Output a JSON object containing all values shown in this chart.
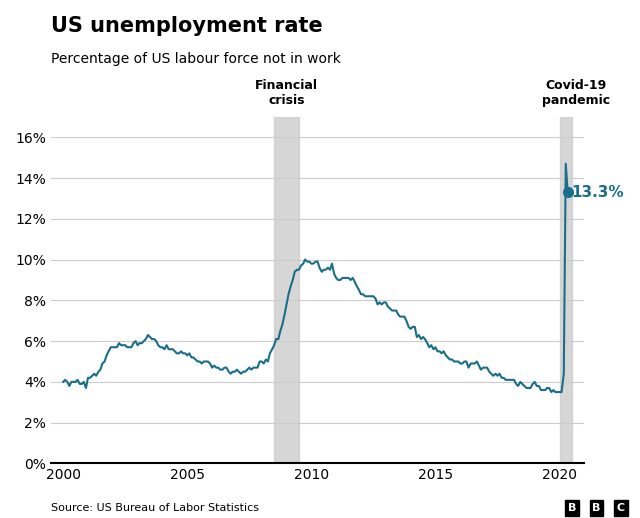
{
  "title": "US unemployment rate",
  "subtitle": "Percentage of US labour force not in work",
  "source": "Source: US Bureau of Labor Statistics",
  "line_color": "#1a6e8a",
  "background_color": "#ffffff",
  "shading_color": "#cccccc",
  "financial_crisis": [
    2008.5,
    2009.5
  ],
  "covid_pandemic": [
    2020.0,
    2020.5
  ],
  "financial_crisis_label": "Financial\ncrisis",
  "covid_label": "Covid-19\npandemic",
  "annotation_value": 13.3,
  "annotation_year": 2020.33,
  "annotation_text": "13.3%",
  "ylim": [
    0,
    17
  ],
  "xlim": [
    1999.5,
    2021.0
  ],
  "yticks": [
    0,
    2,
    4,
    6,
    8,
    10,
    12,
    14,
    16
  ],
  "ytick_labels": [
    "0%",
    "2%",
    "4%",
    "6%",
    "8%",
    "10%",
    "12%",
    "14%",
    "16%"
  ],
  "xticks": [
    2000,
    2005,
    2010,
    2015,
    2020
  ],
  "unemployment_data": [
    [
      2000.0,
      4.0
    ],
    [
      2000.08,
      4.1
    ],
    [
      2000.17,
      4.0
    ],
    [
      2000.25,
      3.8
    ],
    [
      2000.33,
      4.0
    ],
    [
      2000.42,
      4.0
    ],
    [
      2000.5,
      4.0
    ],
    [
      2000.58,
      4.1
    ],
    [
      2000.67,
      3.9
    ],
    [
      2000.75,
      3.9
    ],
    [
      2000.83,
      4.0
    ],
    [
      2000.92,
      3.7
    ],
    [
      2001.0,
      4.2
    ],
    [
      2001.08,
      4.2
    ],
    [
      2001.17,
      4.3
    ],
    [
      2001.25,
      4.4
    ],
    [
      2001.33,
      4.3
    ],
    [
      2001.42,
      4.5
    ],
    [
      2001.5,
      4.6
    ],
    [
      2001.58,
      4.9
    ],
    [
      2001.67,
      5.0
    ],
    [
      2001.75,
      5.3
    ],
    [
      2001.83,
      5.5
    ],
    [
      2001.92,
      5.7
    ],
    [
      2002.0,
      5.7
    ],
    [
      2002.08,
      5.7
    ],
    [
      2002.17,
      5.7
    ],
    [
      2002.25,
      5.9
    ],
    [
      2002.33,
      5.8
    ],
    [
      2002.42,
      5.8
    ],
    [
      2002.5,
      5.8
    ],
    [
      2002.58,
      5.7
    ],
    [
      2002.67,
      5.7
    ],
    [
      2002.75,
      5.7
    ],
    [
      2002.83,
      5.9
    ],
    [
      2002.92,
      6.0
    ],
    [
      2003.0,
      5.8
    ],
    [
      2003.08,
      5.9
    ],
    [
      2003.17,
      5.9
    ],
    [
      2003.25,
      6.0
    ],
    [
      2003.33,
      6.1
    ],
    [
      2003.42,
      6.3
    ],
    [
      2003.5,
      6.2
    ],
    [
      2003.58,
      6.1
    ],
    [
      2003.67,
      6.1
    ],
    [
      2003.75,
      6.0
    ],
    [
      2003.83,
      5.8
    ],
    [
      2003.92,
      5.7
    ],
    [
      2004.0,
      5.7
    ],
    [
      2004.08,
      5.6
    ],
    [
      2004.17,
      5.8
    ],
    [
      2004.25,
      5.6
    ],
    [
      2004.33,
      5.6
    ],
    [
      2004.42,
      5.6
    ],
    [
      2004.5,
      5.5
    ],
    [
      2004.58,
      5.4
    ],
    [
      2004.67,
      5.4
    ],
    [
      2004.75,
      5.5
    ],
    [
      2004.83,
      5.4
    ],
    [
      2004.92,
      5.4
    ],
    [
      2005.0,
      5.3
    ],
    [
      2005.08,
      5.4
    ],
    [
      2005.17,
      5.2
    ],
    [
      2005.25,
      5.2
    ],
    [
      2005.33,
      5.1
    ],
    [
      2005.42,
      5.0
    ],
    [
      2005.5,
      5.0
    ],
    [
      2005.58,
      4.9
    ],
    [
      2005.67,
      5.0
    ],
    [
      2005.75,
      5.0
    ],
    [
      2005.83,
      5.0
    ],
    [
      2005.92,
      4.9
    ],
    [
      2006.0,
      4.7
    ],
    [
      2006.08,
      4.8
    ],
    [
      2006.17,
      4.7
    ],
    [
      2006.25,
      4.7
    ],
    [
      2006.33,
      4.6
    ],
    [
      2006.42,
      4.6
    ],
    [
      2006.5,
      4.7
    ],
    [
      2006.58,
      4.7
    ],
    [
      2006.67,
      4.5
    ],
    [
      2006.75,
      4.4
    ],
    [
      2006.83,
      4.5
    ],
    [
      2006.92,
      4.5
    ],
    [
      2007.0,
      4.6
    ],
    [
      2007.08,
      4.5
    ],
    [
      2007.17,
      4.4
    ],
    [
      2007.25,
      4.5
    ],
    [
      2007.33,
      4.5
    ],
    [
      2007.42,
      4.6
    ],
    [
      2007.5,
      4.7
    ],
    [
      2007.58,
      4.6
    ],
    [
      2007.67,
      4.7
    ],
    [
      2007.75,
      4.7
    ],
    [
      2007.83,
      4.7
    ],
    [
      2007.92,
      5.0
    ],
    [
      2008.0,
      5.0
    ],
    [
      2008.08,
      4.9
    ],
    [
      2008.17,
      5.1
    ],
    [
      2008.25,
      5.0
    ],
    [
      2008.33,
      5.4
    ],
    [
      2008.42,
      5.6
    ],
    [
      2008.5,
      5.8
    ],
    [
      2008.58,
      6.1
    ],
    [
      2008.67,
      6.1
    ],
    [
      2008.75,
      6.5
    ],
    [
      2008.83,
      6.8
    ],
    [
      2008.92,
      7.3
    ],
    [
      2009.0,
      7.8
    ],
    [
      2009.08,
      8.3
    ],
    [
      2009.17,
      8.7
    ],
    [
      2009.25,
      9.0
    ],
    [
      2009.33,
      9.4
    ],
    [
      2009.42,
      9.5
    ],
    [
      2009.5,
      9.5
    ],
    [
      2009.58,
      9.7
    ],
    [
      2009.67,
      9.8
    ],
    [
      2009.75,
      10.0
    ],
    [
      2009.83,
      9.9
    ],
    [
      2009.92,
      9.9
    ],
    [
      2010.0,
      9.8
    ],
    [
      2010.08,
      9.8
    ],
    [
      2010.17,
      9.9
    ],
    [
      2010.25,
      9.9
    ],
    [
      2010.33,
      9.6
    ],
    [
      2010.42,
      9.4
    ],
    [
      2010.5,
      9.5
    ],
    [
      2010.58,
      9.5
    ],
    [
      2010.67,
      9.6
    ],
    [
      2010.75,
      9.5
    ],
    [
      2010.83,
      9.8
    ],
    [
      2010.92,
      9.3
    ],
    [
      2011.0,
      9.1
    ],
    [
      2011.08,
      9.0
    ],
    [
      2011.17,
      9.0
    ],
    [
      2011.25,
      9.1
    ],
    [
      2011.33,
      9.1
    ],
    [
      2011.42,
      9.1
    ],
    [
      2011.5,
      9.1
    ],
    [
      2011.58,
      9.0
    ],
    [
      2011.67,
      9.1
    ],
    [
      2011.75,
      8.9
    ],
    [
      2011.83,
      8.7
    ],
    [
      2011.92,
      8.5
    ],
    [
      2012.0,
      8.3
    ],
    [
      2012.08,
      8.3
    ],
    [
      2012.17,
      8.2
    ],
    [
      2012.25,
      8.2
    ],
    [
      2012.33,
      8.2
    ],
    [
      2012.42,
      8.2
    ],
    [
      2012.5,
      8.2
    ],
    [
      2012.58,
      8.1
    ],
    [
      2012.67,
      7.8
    ],
    [
      2012.75,
      7.9
    ],
    [
      2012.83,
      7.8
    ],
    [
      2012.92,
      7.9
    ],
    [
      2013.0,
      7.9
    ],
    [
      2013.08,
      7.7
    ],
    [
      2013.17,
      7.6
    ],
    [
      2013.25,
      7.5
    ],
    [
      2013.33,
      7.5
    ],
    [
      2013.42,
      7.5
    ],
    [
      2013.5,
      7.3
    ],
    [
      2013.58,
      7.2
    ],
    [
      2013.67,
      7.2
    ],
    [
      2013.75,
      7.2
    ],
    [
      2013.83,
      7.0
    ],
    [
      2013.92,
      6.7
    ],
    [
      2014.0,
      6.6
    ],
    [
      2014.08,
      6.7
    ],
    [
      2014.17,
      6.7
    ],
    [
      2014.25,
      6.2
    ],
    [
      2014.33,
      6.3
    ],
    [
      2014.42,
      6.1
    ],
    [
      2014.5,
      6.2
    ],
    [
      2014.58,
      6.1
    ],
    [
      2014.67,
      5.9
    ],
    [
      2014.75,
      5.7
    ],
    [
      2014.83,
      5.8
    ],
    [
      2014.92,
      5.6
    ],
    [
      2015.0,
      5.7
    ],
    [
      2015.08,
      5.5
    ],
    [
      2015.17,
      5.5
    ],
    [
      2015.25,
      5.4
    ],
    [
      2015.33,
      5.5
    ],
    [
      2015.42,
      5.3
    ],
    [
      2015.5,
      5.2
    ],
    [
      2015.58,
      5.1
    ],
    [
      2015.67,
      5.1
    ],
    [
      2015.75,
      5.0
    ],
    [
      2015.83,
      5.0
    ],
    [
      2015.92,
      5.0
    ],
    [
      2016.0,
      4.9
    ],
    [
      2016.08,
      4.9
    ],
    [
      2016.17,
      5.0
    ],
    [
      2016.25,
      5.0
    ],
    [
      2016.33,
      4.7
    ],
    [
      2016.42,
      4.9
    ],
    [
      2016.5,
      4.9
    ],
    [
      2016.58,
      4.9
    ],
    [
      2016.67,
      5.0
    ],
    [
      2016.75,
      4.8
    ],
    [
      2016.83,
      4.6
    ],
    [
      2016.92,
      4.7
    ],
    [
      2017.0,
      4.7
    ],
    [
      2017.08,
      4.7
    ],
    [
      2017.17,
      4.5
    ],
    [
      2017.25,
      4.4
    ],
    [
      2017.33,
      4.3
    ],
    [
      2017.42,
      4.4
    ],
    [
      2017.5,
      4.3
    ],
    [
      2017.58,
      4.4
    ],
    [
      2017.67,
      4.2
    ],
    [
      2017.75,
      4.2
    ],
    [
      2017.83,
      4.1
    ],
    [
      2017.92,
      4.1
    ],
    [
      2018.0,
      4.1
    ],
    [
      2018.08,
      4.1
    ],
    [
      2018.17,
      4.1
    ],
    [
      2018.25,
      3.9
    ],
    [
      2018.33,
      3.8
    ],
    [
      2018.42,
      4.0
    ],
    [
      2018.5,
      3.9
    ],
    [
      2018.58,
      3.8
    ],
    [
      2018.67,
      3.7
    ],
    [
      2018.75,
      3.7
    ],
    [
      2018.83,
      3.7
    ],
    [
      2018.92,
      3.9
    ],
    [
      2019.0,
      4.0
    ],
    [
      2019.08,
      3.8
    ],
    [
      2019.17,
      3.8
    ],
    [
      2019.25,
      3.6
    ],
    [
      2019.33,
      3.6
    ],
    [
      2019.42,
      3.6
    ],
    [
      2019.5,
      3.7
    ],
    [
      2019.58,
      3.7
    ],
    [
      2019.67,
      3.5
    ],
    [
      2019.75,
      3.6
    ],
    [
      2019.83,
      3.5
    ],
    [
      2019.92,
      3.5
    ],
    [
      2020.0,
      3.5
    ],
    [
      2020.08,
      3.5
    ],
    [
      2020.17,
      4.4
    ],
    [
      2020.25,
      14.7
    ],
    [
      2020.33,
      13.3
    ]
  ]
}
